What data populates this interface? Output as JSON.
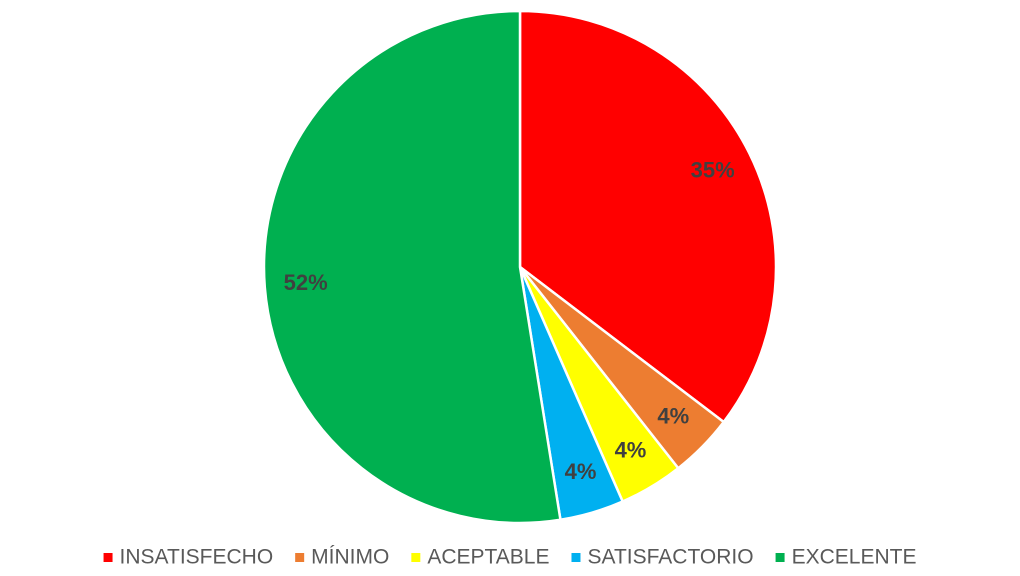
{
  "chart_data": {
    "type": "pie",
    "categories": [
      "INSATISFECHO",
      "MÍNIMO",
      "ACEPTABLE",
      "SATISFACTORIO",
      "EXCELENTE"
    ],
    "values": [
      35,
      4,
      4,
      4,
      52
    ],
    "value_labels": [
      "35%",
      "4%",
      "4%",
      "4%",
      "52%"
    ],
    "colors": [
      "#ff0000",
      "#ed7d31",
      "#ffff00",
      "#00b0f0",
      "#00b050"
    ],
    "legend": "bottom"
  }
}
